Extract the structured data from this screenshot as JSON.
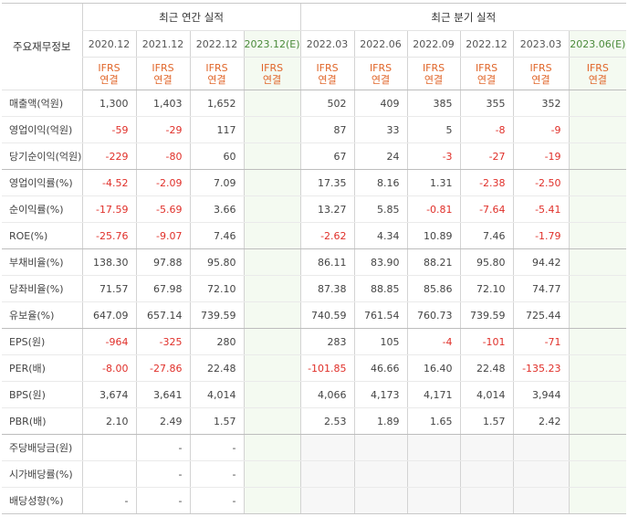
{
  "header": {
    "corner_label": "주요재무정보",
    "annual_group_label": "최근 연간 실적",
    "quarter_group_label": "최근 분기 실적",
    "annual_periods": [
      "2020.12",
      "2021.12",
      "2022.12",
      "2023.12(E)"
    ],
    "quarter_periods": [
      "2022.03",
      "2022.06",
      "2022.09",
      "2022.12",
      "2023.03",
      "2023.06(E)"
    ],
    "basis_line1": "IFRS",
    "basis_line2": "연결"
  },
  "rows": [
    {
      "label": "매출액(억원)",
      "annual": [
        "1,300",
        "1,403",
        "1,652",
        ""
      ],
      "quarter": [
        "502",
        "409",
        "385",
        "355",
        "352",
        ""
      ]
    },
    {
      "label": "영업이익(억원)",
      "annual": [
        "-59",
        "-29",
        "117",
        ""
      ],
      "quarter": [
        "87",
        "33",
        "5",
        "-8",
        "-9",
        ""
      ]
    },
    {
      "label": "당기순이익(억원)",
      "annual": [
        "-229",
        "-80",
        "60",
        ""
      ],
      "quarter": [
        "67",
        "24",
        "-3",
        "-27",
        "-19",
        ""
      ]
    },
    {
      "label": "영업이익률(%)",
      "annual": [
        "-4.52",
        "-2.09",
        "7.09",
        ""
      ],
      "quarter": [
        "17.35",
        "8.16",
        "1.31",
        "-2.38",
        "-2.50",
        ""
      ]
    },
    {
      "label": "순이익률(%)",
      "annual": [
        "-17.59",
        "-5.69",
        "3.66",
        ""
      ],
      "quarter": [
        "13.27",
        "5.85",
        "-0.81",
        "-7.64",
        "-5.41",
        ""
      ]
    },
    {
      "label": "ROE(%)",
      "annual": [
        "-25.76",
        "-9.07",
        "7.46",
        ""
      ],
      "quarter": [
        "-2.62",
        "4.34",
        "10.89",
        "7.46",
        "-1.79",
        ""
      ]
    },
    {
      "label": "부채비율(%)",
      "annual": [
        "138.30",
        "97.88",
        "95.80",
        ""
      ],
      "quarter": [
        "86.11",
        "83.90",
        "88.21",
        "95.80",
        "94.42",
        ""
      ]
    },
    {
      "label": "당좌비율(%)",
      "annual": [
        "71.57",
        "67.98",
        "72.10",
        ""
      ],
      "quarter": [
        "87.38",
        "88.85",
        "85.86",
        "72.10",
        "74.77",
        ""
      ]
    },
    {
      "label": "유보율(%)",
      "annual": [
        "647.09",
        "657.14",
        "739.59",
        ""
      ],
      "quarter": [
        "740.59",
        "761.54",
        "760.73",
        "739.59",
        "725.44",
        ""
      ]
    },
    {
      "label": "EPS(원)",
      "annual": [
        "-964",
        "-325",
        "280",
        ""
      ],
      "quarter": [
        "283",
        "105",
        "-4",
        "-101",
        "-71",
        ""
      ]
    },
    {
      "label": "PER(배)",
      "annual": [
        "-8.00",
        "-27.86",
        "22.48",
        ""
      ],
      "quarter": [
        "-101.85",
        "46.66",
        "16.40",
        "22.48",
        "-135.23",
        ""
      ]
    },
    {
      "label": "BPS(원)",
      "annual": [
        "3,674",
        "3,641",
        "4,014",
        ""
      ],
      "quarter": [
        "4,066",
        "4,173",
        "4,171",
        "4,014",
        "3,944",
        ""
      ]
    },
    {
      "label": "PBR(배)",
      "annual": [
        "2.10",
        "2.49",
        "1.57",
        ""
      ],
      "quarter": [
        "2.53",
        "1.89",
        "1.65",
        "1.57",
        "2.42",
        ""
      ]
    },
    {
      "label": "주당배당금(원)",
      "annual": [
        "",
        "-",
        "-",
        ""
      ],
      "quarter": [
        "",
        "",
        "",
        "",
        "",
        ""
      ]
    },
    {
      "label": "시가배당률(%)",
      "annual": [
        "",
        "-",
        "-",
        ""
      ],
      "quarter": [
        "",
        "",
        "",
        "",
        "",
        ""
      ]
    },
    {
      "label": "배당성향(%)",
      "annual": [
        "-",
        "-",
        "-",
        ""
      ],
      "quarter": [
        "",
        "",
        "",
        "",
        "",
        ""
      ]
    }
  ],
  "colors": {
    "negative": "#e0302a",
    "basis": "#e0662a",
    "estimate_bg": "#f4faf1",
    "estimate_text": "#4a8a3a",
    "dividend_bg": "#f7f7f7"
  }
}
